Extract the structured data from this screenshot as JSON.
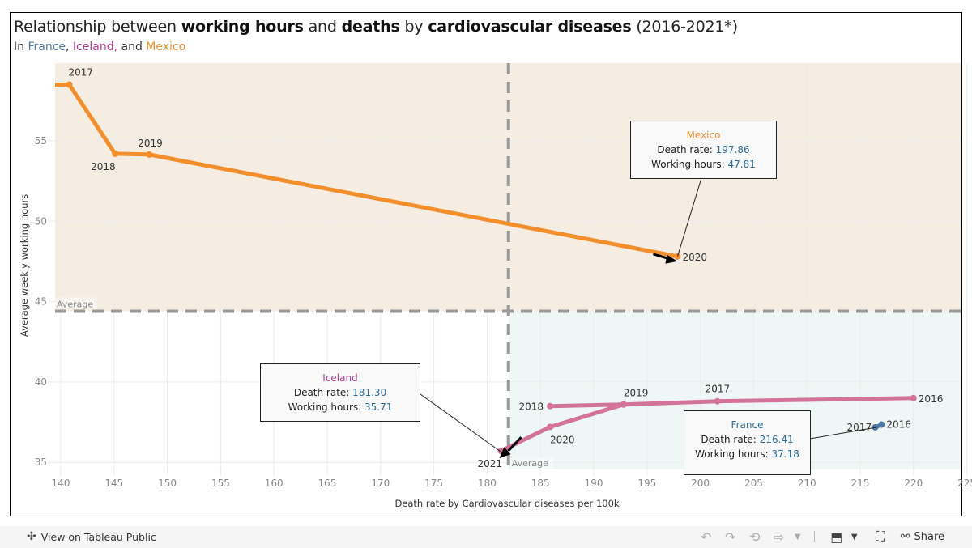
{
  "title": {
    "parts": [
      "Relationship between ",
      "working hours",
      " and ",
      "deaths",
      " by ",
      "cardiovascular diseases",
      " (2016-2021*)"
    ]
  },
  "subtitle": {
    "prefix": "In ",
    "france": "France",
    "comma": ", ",
    "iceland": "Iceland,",
    "and": " and ",
    "mexico": "Mexico"
  },
  "colors": {
    "france": "#4e79a7",
    "iceland": "#d4739a",
    "iceland_label": "#b8398f",
    "mexico": "#f28e2b",
    "top_region": "#f5ece2",
    "bottom_right_region": "#eef7f6",
    "average_line": "#999999",
    "value_text": "#2c6d9a"
  },
  "chart_data": {
    "type": "line",
    "title": "Relationship between working hours and deaths by cardiovascular diseases (2016-2021*)",
    "xlabel": "Death rate by Cardiovascular diseases per 100k",
    "ylabel": "Average weekly working hours",
    "xlim": [
      139.5,
      226
    ],
    "ylim": [
      34.6,
      59.8
    ],
    "x_ticks": [
      140,
      145,
      150,
      155,
      160,
      165,
      170,
      175,
      180,
      185,
      190,
      195,
      200,
      205,
      210,
      215,
      220,
      225
    ],
    "y_ticks": [
      35,
      40,
      45,
      50,
      55
    ],
    "grid": true,
    "averages": {
      "x": 182.0,
      "y": 44.4,
      "label": "Average"
    },
    "series": [
      {
        "name": "Mexico",
        "color_key": "mexico",
        "points": [
          {
            "year": "2016",
            "x": 139.3,
            "y": 58.5,
            "label": ""
          },
          {
            "year": "2017",
            "x": 140.8,
            "y": 58.5,
            "label": "2017"
          },
          {
            "year": "2018",
            "x": 145.1,
            "y": 54.2,
            "label": "2018"
          },
          {
            "year": "2019",
            "x": 148.3,
            "y": 54.15,
            "label": "2019"
          },
          {
            "year": "2020",
            "x": 197.86,
            "y": 47.81,
            "label": "2020"
          }
        ]
      },
      {
        "name": "Iceland",
        "color_key": "iceland",
        "points": [
          {
            "year": "2016",
            "x": 220.0,
            "y": 39.0,
            "label": "2016"
          },
          {
            "year": "2017",
            "x": 201.6,
            "y": 38.8,
            "label": "2017"
          },
          {
            "year": "2019",
            "x": 192.8,
            "y": 38.6,
            "label": "2019"
          },
          {
            "year": "2018",
            "x": 185.9,
            "y": 38.5,
            "label": "2018"
          },
          {
            "year": "2019",
            "x": 192.8,
            "y": 38.6,
            "label": ""
          },
          {
            "year": "2020",
            "x": 185.9,
            "y": 37.2,
            "label": "2020"
          },
          {
            "year": "2021",
            "x": 181.3,
            "y": 35.71,
            "label": "2021"
          }
        ]
      },
      {
        "name": "France",
        "color_key": "france",
        "points": [
          {
            "year": "2016",
            "x": 217.0,
            "y": 37.35,
            "label": "2016"
          },
          {
            "year": "2017",
            "x": 216.41,
            "y": 37.18,
            "label": "2017"
          }
        ]
      }
    ],
    "annotations": [
      {
        "country": "Mexico",
        "death_rate_label": "Death rate: ",
        "death_rate": "197.86",
        "hours_label": "Working hours: ",
        "hours": "47.81",
        "target_x": 197.86,
        "target_y": 47.81
      },
      {
        "country": "Iceland",
        "death_rate_label": "Death rate: ",
        "death_rate": "181.30",
        "hours_label": "Working hours: ",
        "hours": "35.71",
        "target_x": 181.3,
        "target_y": 35.71
      },
      {
        "country": "France",
        "death_rate_label": "Death rate: ",
        "death_rate": "216.41",
        "hours_label": "Working hours: ",
        "hours": "37.18",
        "target_x": 216.41,
        "target_y": 37.18
      }
    ]
  },
  "footer": {
    "tableau_link": "View on Tableau Public",
    "share": "Share"
  }
}
